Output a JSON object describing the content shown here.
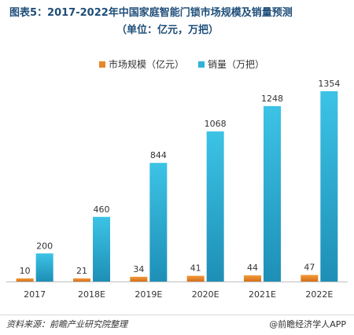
{
  "title": {
    "line1": "图表5：2017-2022年中国家庭智能门锁市场规模及销量预测",
    "line2": "（单位：亿元，万把）"
  },
  "chart_data": {
    "type": "bar",
    "categories": [
      "2017",
      "2018E",
      "2019E",
      "2020E",
      "2021E",
      "2022E"
    ],
    "series": [
      {
        "name": "市场规模（亿元）",
        "values": [
          10,
          21,
          34,
          41,
          44,
          47
        ],
        "color": "#e8862a"
      },
      {
        "name": "销量（万把）",
        "values": [
          200,
          460,
          844,
          1068,
          1248,
          1354
        ],
        "color": "#2fb3d8"
      }
    ],
    "ylim": [
      0,
      1354
    ],
    "legend_position": "top-center",
    "grid": false
  },
  "footer": {
    "source": "资料来源：前瞻产业研究院整理",
    "brand": "@前瞻经济学人APP"
  }
}
